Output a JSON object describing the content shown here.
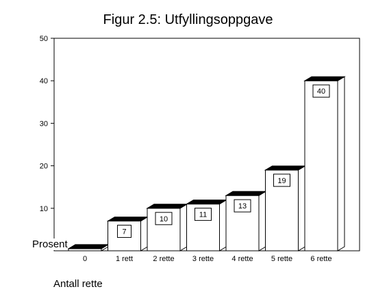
{
  "chart_data": {
    "type": "bar",
    "title": "Figur 2.5: Utfyllingsoppgave",
    "xlabel": "Antall rette",
    "ylabel": "Prosent",
    "categories": [
      "0",
      "1 rett",
      "2 rette",
      "3 rette",
      "4 rette",
      "5 rette",
      "6 rette"
    ],
    "values": [
      0.5,
      7,
      10,
      11,
      13,
      19,
      40
    ],
    "data_labels": [
      "",
      "7",
      "10",
      "11",
      "13",
      "19",
      "40"
    ],
    "yticks": [
      10,
      20,
      30,
      40,
      50
    ],
    "ylim": [
      0,
      50
    ],
    "grid": false,
    "legend": "none",
    "bar_style": "3d",
    "colors": {
      "bar_face": "#ffffff",
      "bar_top": "#000000",
      "outline": "#000000"
    }
  }
}
